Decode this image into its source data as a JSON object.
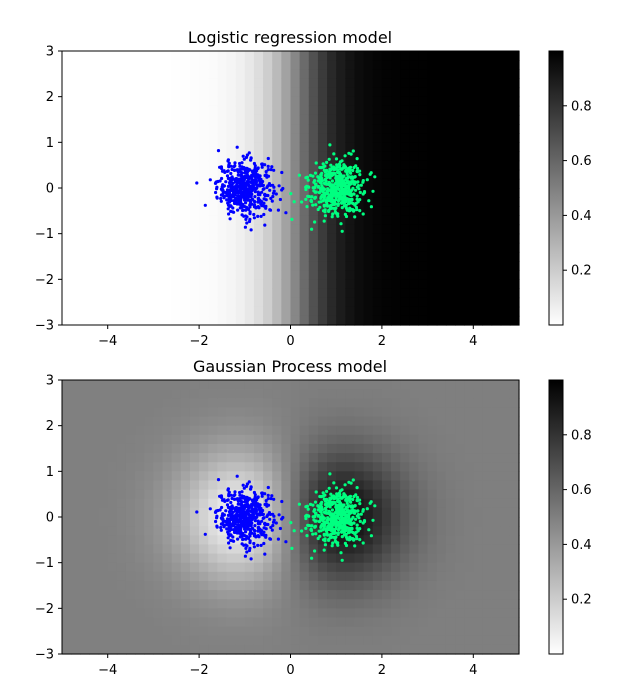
{
  "chart_data": [
    {
      "type": "heatmap",
      "title": "Logistic regression model",
      "xlabel": "",
      "ylabel": "",
      "xlim": [
        -5,
        5
      ],
      "ylim": [
        -3,
        3
      ],
      "x_ticks": [
        -4,
        -2,
        0,
        2,
        4
      ],
      "y_ticks": [
        -3,
        -2,
        -1,
        0,
        1,
        2,
        3
      ],
      "grid": false,
      "colormap": "grey-reversed (0 = white, 1 = black)",
      "colorbar": {
        "range": [
          0.0,
          1.0
        ],
        "ticks": [
          0.2,
          0.4,
          0.6,
          0.8
        ]
      },
      "field": {
        "kind": "logistic",
        "slope": 2.2,
        "center": 0.15
      },
      "scatter": [
        {
          "color": "#0000ff",
          "center": [
            -1.0,
            0.0
          ],
          "spread": 0.3,
          "count": 500
        },
        {
          "color": "#00ff80",
          "center": [
            1.0,
            0.0
          ],
          "spread": 0.3,
          "count": 500
        }
      ]
    },
    {
      "type": "heatmap",
      "title": "Gaussian Process model",
      "xlabel": "",
      "ylabel": "",
      "xlim": [
        -5,
        5
      ],
      "ylim": [
        -3,
        3
      ],
      "x_ticks": [
        -4,
        -2,
        0,
        2,
        4
      ],
      "y_ticks": [
        -3,
        -2,
        -1,
        0,
        1,
        2,
        3
      ],
      "grid": false,
      "colormap": "grey-reversed (0 = white, 1 = black)",
      "colorbar": {
        "range": [
          0.0,
          1.0
        ],
        "ticks": [
          0.2,
          0.4,
          0.6,
          0.8
        ]
      },
      "field": {
        "kind": "gaussian-process",
        "baseline": 0.5,
        "bumps": [
          {
            "center": [
              -1.0,
              0.0
            ],
            "amplitude": -0.5,
            "sigma": 1.0
          },
          {
            "center": [
              1.0,
              0.0
            ],
            "amplitude": 0.5,
            "sigma": 1.0
          }
        ]
      },
      "scatter": [
        {
          "color": "#0000ff",
          "center": [
            -1.0,
            0.0
          ],
          "spread": 0.3,
          "count": 500
        },
        {
          "color": "#00ff80",
          "center": [
            1.0,
            0.0
          ],
          "spread": 0.3,
          "count": 500
        }
      ]
    }
  ]
}
